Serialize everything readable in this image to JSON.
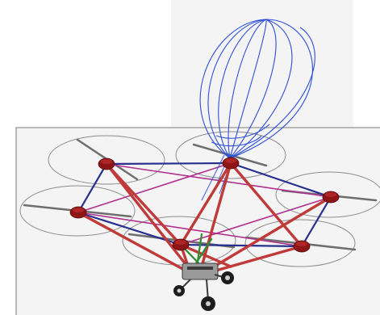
{
  "figure": {
    "description_labels": [],
    "colors": {
      "balloon": "#2d4fd8",
      "frame_blue": "#27308f",
      "frame_magenta": "#b0308f",
      "frame_red": "#c03a3a",
      "frame_green": "#2e8b2e",
      "motor": "#8e1515",
      "rotor_disk": "#8c8c8c"
    },
    "rotor_count": 6,
    "icons": [
      "balloon-icon",
      "rotor-icon",
      "motor-icon",
      "landing-gear-icon"
    ]
  }
}
